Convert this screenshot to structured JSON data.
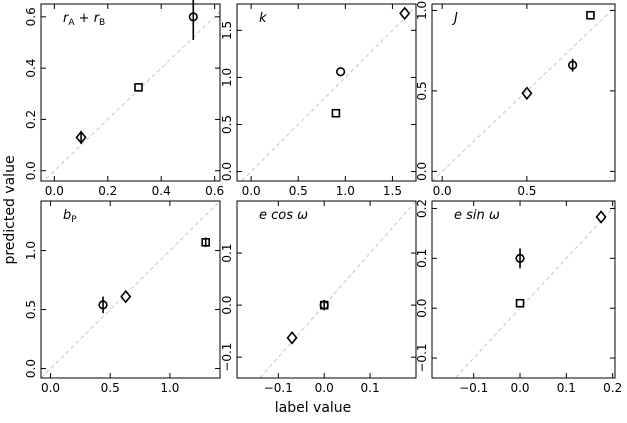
{
  "chart_data": {
    "type": "scatter",
    "xlabel": "label value",
    "ylabel": "predicted value",
    "marker_legend": [
      "circle",
      "square",
      "diamond"
    ],
    "panels": [
      {
        "label": "r_A + r_B",
        "xlim": [
          -0.05,
          0.62
        ],
        "ylim": [
          -0.04,
          0.65
        ],
        "xticks": [
          0.0,
          0.2,
          0.4,
          0.6
        ],
        "xticklabels": [
          "0.0",
          "0.2",
          "0.4",
          "0.6"
        ],
        "yticks": [
          0.0,
          0.2,
          0.4,
          0.6
        ],
        "yticklabels": [
          "0.0",
          "0.2",
          "0.4",
          "0.6"
        ],
        "points": [
          {
            "marker": "circle",
            "x": 0.52,
            "y": 0.6,
            "err": 0.09
          },
          {
            "marker": "square",
            "x": 0.315,
            "y": 0.325,
            "err": 0.0
          },
          {
            "marker": "diamond",
            "x": 0.1,
            "y": 0.13,
            "err": 0.025
          }
        ]
      },
      {
        "label": "k",
        "xlim": [
          -0.15,
          1.75
        ],
        "ylim": [
          -0.1,
          1.78
        ],
        "xticks": [
          0.0,
          0.5,
          1.0,
          1.5
        ],
        "xticklabels": [
          "0.0",
          "0.5",
          "1.0",
          "1.5"
        ],
        "yticks": [
          0.0,
          0.5,
          1.0,
          1.5
        ],
        "yticklabels": [
          "0.0",
          "0.5",
          "1.0",
          "1.5"
        ],
        "points": [
          {
            "marker": "circle",
            "x": 0.95,
            "y": 1.06,
            "err": 0.0
          },
          {
            "marker": "square",
            "x": 0.9,
            "y": 0.62,
            "err": 0.0
          },
          {
            "marker": "diamond",
            "x": 1.63,
            "y": 1.68,
            "err": 0.0
          }
        ]
      },
      {
        "label": "J",
        "xlim": [
          -0.06,
          1.02
        ],
        "ylim": [
          -0.06,
          1.04
        ],
        "xticks": [
          0.0,
          0.5
        ],
        "xticklabels": [
          "0.0",
          "0.5"
        ],
        "yticks": [
          0.0,
          0.5,
          1.0
        ],
        "yticklabels": [
          "0.0",
          "0.5",
          "1.0"
        ],
        "points": [
          {
            "marker": "circle",
            "x": 0.77,
            "y": 0.66,
            "err": 0.04
          },
          {
            "marker": "square",
            "x": 0.875,
            "y": 0.97,
            "err": 0.0
          },
          {
            "marker": "diamond",
            "x": 0.5,
            "y": 0.485,
            "err": 0.0
          }
        ]
      },
      {
        "label": "b_P",
        "xlim": [
          -0.08,
          1.42
        ],
        "ylim": [
          -0.08,
          1.42
        ],
        "xticks": [
          0.0,
          0.5,
          1.0
        ],
        "xticklabels": [
          "0.0",
          "0.5",
          "1.0"
        ],
        "yticks": [
          0.0,
          0.5,
          1.0
        ],
        "yticklabels": [
          "0.0",
          "0.5",
          "1.0"
        ],
        "points": [
          {
            "marker": "circle",
            "x": 0.44,
            "y": 0.54,
            "err": 0.07
          },
          {
            "marker": "square",
            "x": 1.3,
            "y": 1.07,
            "err": 0.04
          },
          {
            "marker": "diamond",
            "x": 0.63,
            "y": 0.61,
            "err": 0.0
          }
        ]
      },
      {
        "label": "e cos ω",
        "xlim": [
          -0.19,
          0.2
        ],
        "ylim": [
          -0.14,
          0.2
        ],
        "xticks": [
          -0.1,
          0.0,
          0.1
        ],
        "xticklabels": [
          "−0.1",
          "0.0",
          "0.1"
        ],
        "yticks": [
          -0.1,
          0.0,
          0.1
        ],
        "yticklabels": [
          "−0.1",
          "0.0",
          "0.1"
        ],
        "points": [
          {
            "marker": "circle",
            "x": 0.0,
            "y": 0.0,
            "err": 0.01
          },
          {
            "marker": "square",
            "x": 0.0,
            "y": 0.0,
            "err": 0.0
          },
          {
            "marker": "diamond",
            "x": -0.07,
            "y": -0.063,
            "err": 0.0
          }
        ]
      },
      {
        "label": "e sin ω",
        "xlim": [
          -0.19,
          0.205
        ],
        "ylim": [
          -0.14,
          0.215
        ],
        "xticks": [
          -0.1,
          0.0,
          0.1,
          0.2
        ],
        "xticklabels": [
          "−0.1",
          "0.0",
          "0.1",
          "0.2"
        ],
        "yticks": [
          -0.1,
          0.0,
          0.1,
          0.2
        ],
        "yticklabels": [
          "−0.1",
          "0.0",
          "0.1",
          "0.2"
        ],
        "points": [
          {
            "marker": "circle",
            "x": 0.0,
            "y": 0.1,
            "err": 0.02
          },
          {
            "marker": "square",
            "x": 0.0,
            "y": 0.01,
            "err": 0.0
          },
          {
            "marker": "diamond",
            "x": 0.175,
            "y": 0.183,
            "err": 0.0
          }
        ]
      }
    ]
  }
}
